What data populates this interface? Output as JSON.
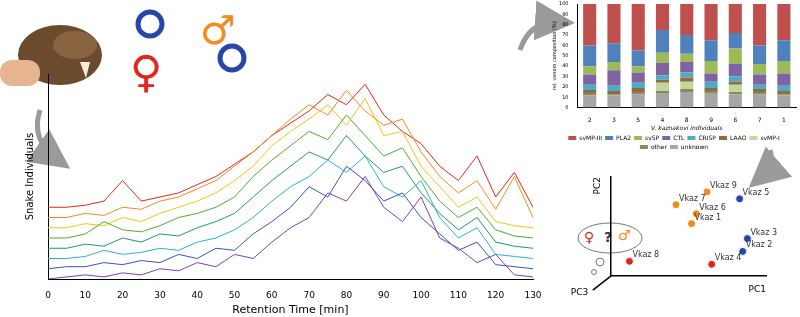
{
  "chart_data": [
    {
      "type": "line",
      "xlabel": "Retention Time [min]",
      "ylabel": "Snake Individuals",
      "x": [
        0,
        5,
        10,
        15,
        20,
        25,
        30,
        35,
        40,
        45,
        50,
        55,
        60,
        65,
        70,
        75,
        80,
        85,
        90,
        95,
        100,
        105,
        110,
        115,
        120,
        125,
        130
      ],
      "xlim": [
        0,
        130
      ],
      "xticks": [
        0,
        10,
        20,
        30,
        40,
        50,
        60,
        70,
        80,
        90,
        100,
        110,
        120,
        130
      ],
      "ylim": [
        0,
        100
      ],
      "grid": false,
      "tick_labels": "x",
      "series": [
        {
          "color": "#7b3fb8",
          "values": [
            0,
            1,
            2,
            1,
            3,
            2,
            5,
            4,
            8,
            6,
            12,
            10,
            18,
            25,
            30,
            42,
            38,
            50,
            35,
            28,
            40,
            20,
            15,
            8,
            12,
            2,
            1
          ]
        },
        {
          "color": "#3552c8",
          "values": [
            5,
            6,
            6,
            8,
            7,
            9,
            8,
            12,
            10,
            15,
            14,
            22,
            28,
            35,
            45,
            40,
            55,
            48,
            38,
            42,
            30,
            22,
            14,
            18,
            7,
            6,
            5
          ]
        },
        {
          "color": "#2ab0d8",
          "values": [
            10,
            10,
            11,
            14,
            12,
            13,
            15,
            14,
            18,
            20,
            24,
            30,
            38,
            45,
            50,
            58,
            52,
            60,
            45,
            40,
            48,
            30,
            20,
            25,
            12,
            11,
            10
          ]
        },
        {
          "color": "#1e9a6a",
          "values": [
            15,
            15,
            17,
            16,
            20,
            18,
            22,
            21,
            25,
            28,
            32,
            40,
            48,
            55,
            62,
            58,
            70,
            60,
            52,
            55,
            42,
            32,
            24,
            30,
            18,
            16,
            15
          ]
        },
        {
          "color": "#4cae2c",
          "values": [
            20,
            20,
            22,
            28,
            24,
            23,
            26,
            30,
            32,
            35,
            40,
            50,
            58,
            65,
            72,
            68,
            80,
            70,
            60,
            64,
            50,
            38,
            30,
            35,
            24,
            21,
            20
          ]
        },
        {
          "color": "#e8c817",
          "values": [
            25,
            25,
            27,
            26,
            30,
            28,
            32,
            35,
            38,
            42,
            48,
            55,
            65,
            72,
            78,
            85,
            75,
            88,
            70,
            72,
            55,
            45,
            35,
            40,
            28,
            26,
            25
          ]
        },
        {
          "color": "#f28a1c",
          "values": [
            30,
            30,
            32,
            31,
            35,
            34,
            38,
            40,
            44,
            48,
            55,
            62,
            70,
            78,
            85,
            80,
            92,
            82,
            75,
            78,
            62,
            50,
            42,
            48,
            34,
            50,
            30
          ]
        },
        {
          "color": "#e0261e",
          "values": [
            35,
            35,
            36,
            38,
            48,
            38,
            40,
            42,
            46,
            50,
            56,
            62,
            70,
            76,
            82,
            90,
            85,
            95,
            80,
            72,
            66,
            55,
            48,
            60,
            40,
            52,
            35
          ]
        }
      ]
    },
    {
      "type": "bar",
      "stacked": true,
      "ylabel": "rel. venom composition [%]",
      "xlabel": "V. kaznakovi individuals",
      "categories": [
        "2",
        "3",
        "5",
        "4",
        "8",
        "9",
        "6",
        "7",
        "1"
      ],
      "ylim": [
        0,
        100
      ],
      "yticks": [
        0,
        10,
        20,
        30,
        40,
        50,
        60,
        70,
        80,
        90,
        100
      ],
      "grid": false,
      "legend": "bottom",
      "series": [
        {
          "name": "svMP-III",
          "color": "#c0504d",
          "values": [
            40,
            38,
            45,
            25,
            30,
            35,
            28,
            40,
            35
          ]
        },
        {
          "name": "PLA2",
          "color": "#4f81bd",
          "values": [
            20,
            18,
            15,
            22,
            18,
            20,
            15,
            18,
            20
          ]
        },
        {
          "name": "svSP",
          "color": "#9bbb59",
          "values": [
            8,
            8,
            6,
            10,
            8,
            12,
            15,
            10,
            12
          ]
        },
        {
          "name": "CTL",
          "color": "#8064a2",
          "values": [
            10,
            15,
            10,
            12,
            10,
            8,
            12,
            10,
            12
          ]
        },
        {
          "name": "CRISP",
          "color": "#4bacc6",
          "values": [
            5,
            5,
            5,
            4,
            5,
            6,
            5,
            4,
            5
          ]
        },
        {
          "name": "LAAO",
          "color": "#946b3a",
          "values": [
            3,
            3,
            4,
            3,
            4,
            3,
            3,
            3,
            3
          ]
        },
        {
          "name": "svMP-I",
          "color": "#c4d79b",
          "values": [
            0,
            0,
            0,
            8,
            7,
            0,
            7,
            0,
            0
          ]
        },
        {
          "name": "other",
          "color": "#8a8a5c",
          "values": [
            2,
            1,
            2,
            2,
            3,
            2,
            2,
            2,
            1
          ]
        },
        {
          "name": "unknown",
          "color": "#a6a6a6",
          "values": [
            12,
            12,
            13,
            14,
            15,
            14,
            13,
            13,
            12
          ]
        }
      ]
    },
    {
      "type": "scatter",
      "xlabel": "PC1",
      "ylabel": "PC2",
      "zlabel": "PC3",
      "xlim": [
        0,
        10
      ],
      "ylim": [
        0,
        10
      ],
      "grid": false,
      "tick_labels": false,
      "data_labels": true,
      "x": [
        6.2,
        8.3,
        4.2,
        5.5,
        5.2,
        8.8,
        8.5,
        6.5,
        1.2
      ],
      "y": [
        8.5,
        7.8,
        7.2,
        6.3,
        5.3,
        3.8,
        2.5,
        1.2,
        1.5
      ],
      "labels": [
        "Vkaz 9",
        "Vkaz 5",
        "Vkaz 7",
        "Vkaz 6",
        "Vkaz 1",
        "Vkaz 3",
        "Vkaz 2",
        "Vkaz 4",
        "Vkaz 8"
      ],
      "colors": [
        "#f28a1c",
        "#2845a8",
        "#f28a1c",
        "#f28a1c",
        "#f28a1c",
        "#2845a8",
        "#2845a8",
        "#e0261e",
        "#e0261e"
      ]
    }
  ],
  "symbols": {
    "female": "♀",
    "male": "♂",
    "question": "?"
  }
}
